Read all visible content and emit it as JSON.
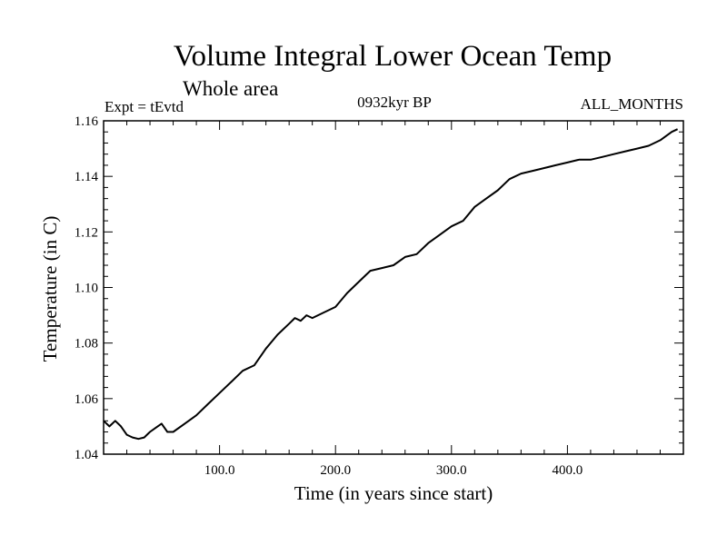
{
  "chart_data": {
    "type": "line",
    "title": "Volume Integral Lower Ocean Temp",
    "subtitle": "Whole area",
    "left_annotation": "Expt = tEvtd",
    "center_annotation": "0932kyr BP",
    "right_annotation": "ALL_MONTHS",
    "xlabel": "Time (in years since start)",
    "ylabel": "Temperature (in C)",
    "xlim": [
      0,
      500
    ],
    "ylim": [
      1.04,
      1.16
    ],
    "x_ticks": [
      100,
      200,
      300,
      400
    ],
    "x_tick_labels": [
      "100.0",
      "200.0",
      "300.0",
      "400.0"
    ],
    "y_ticks": [
      1.04,
      1.06,
      1.08,
      1.1,
      1.12,
      1.14,
      1.16
    ],
    "y_tick_labels": [
      "1.04",
      "1.06",
      "1.08",
      "1.10",
      "1.12",
      "1.14",
      "1.16"
    ],
    "grid": false,
    "series": [
      {
        "name": "Volume Integral Lower Ocean Temp",
        "color": "#000000",
        "x": [
          0,
          5,
          10,
          15,
          20,
          25,
          30,
          35,
          40,
          45,
          50,
          55,
          60,
          70,
          80,
          90,
          100,
          110,
          120,
          130,
          140,
          150,
          160,
          165,
          170,
          175,
          180,
          190,
          200,
          210,
          220,
          230,
          240,
          250,
          260,
          270,
          280,
          290,
          300,
          310,
          320,
          330,
          340,
          350,
          360,
          370,
          380,
          390,
          400,
          410,
          420,
          430,
          440,
          450,
          460,
          470,
          480,
          490,
          495
        ],
        "values": [
          1.052,
          1.05,
          1.052,
          1.05,
          1.047,
          1.046,
          1.0455,
          1.046,
          1.048,
          1.0495,
          1.051,
          1.048,
          1.048,
          1.051,
          1.054,
          1.058,
          1.062,
          1.066,
          1.07,
          1.072,
          1.078,
          1.083,
          1.087,
          1.089,
          1.088,
          1.09,
          1.089,
          1.091,
          1.093,
          1.098,
          1.102,
          1.106,
          1.107,
          1.108,
          1.111,
          1.112,
          1.116,
          1.119,
          1.122,
          1.124,
          1.129,
          1.132,
          1.135,
          1.139,
          1.141,
          1.142,
          1.143,
          1.144,
          1.145,
          1.146,
          1.146,
          1.147,
          1.148,
          1.149,
          1.15,
          1.151,
          1.153,
          1.156,
          1.157
        ]
      }
    ]
  }
}
